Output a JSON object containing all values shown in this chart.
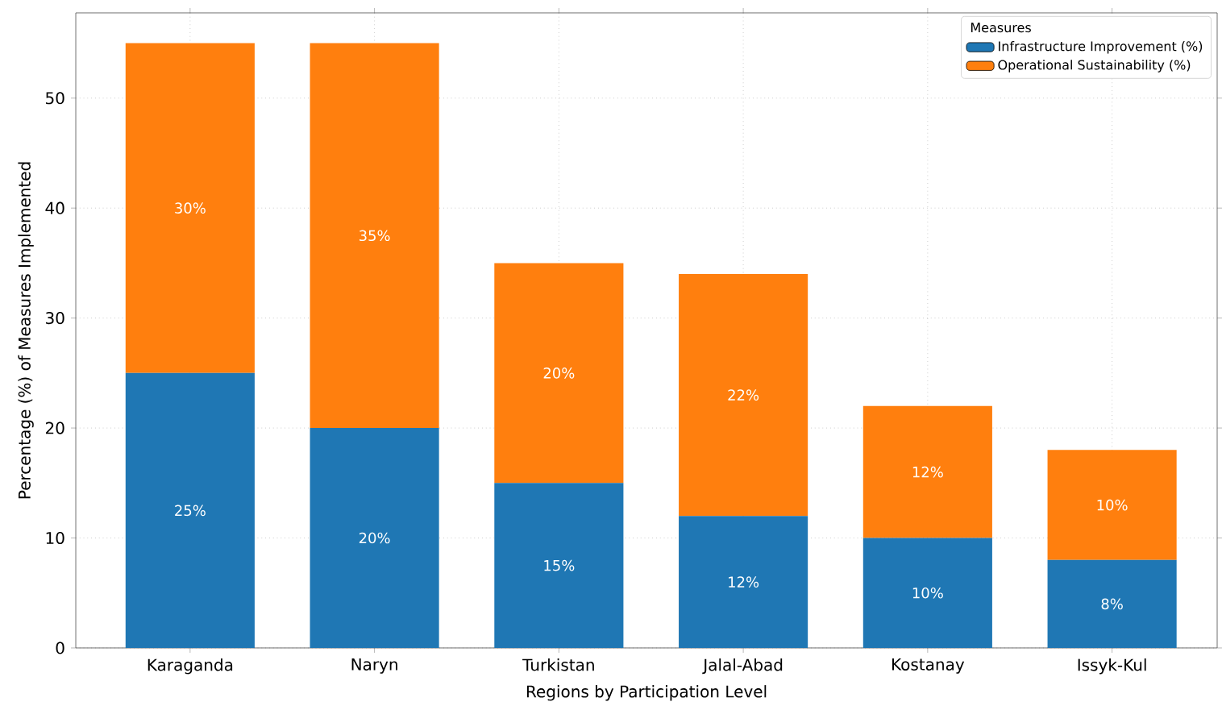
{
  "chart_data": {
    "type": "bar",
    "stacked": true,
    "xlabel": "Regions by Participation Level",
    "ylabel": "Percentage (%) of Measures Implemented",
    "legend_title": "Measures",
    "legend": "top right",
    "grid": true,
    "categories": [
      "Karaganda",
      "Naryn",
      "Turkistan",
      "Jalal-Abad",
      "Kostanay",
      "Issyk-Kul"
    ],
    "ylim": [
      0,
      57.75
    ],
    "yticks": [
      0,
      10,
      20,
      30,
      40,
      50
    ],
    "series": [
      {
        "name": "Infrastructure Improvement (%)",
        "color": "#1f77b4",
        "values": [
          25,
          20,
          15,
          12,
          10,
          8
        ],
        "value_labels": [
          "25%",
          "20%",
          "15%",
          "12%",
          "10%",
          "8%"
        ]
      },
      {
        "name": "Operational Sustainability (%)",
        "color": "#ff7f0e",
        "values": [
          30,
          35,
          20,
          22,
          12,
          10
        ],
        "value_labels": [
          "30%",
          "35%",
          "20%",
          "22%",
          "12%",
          "10%"
        ]
      }
    ]
  }
}
